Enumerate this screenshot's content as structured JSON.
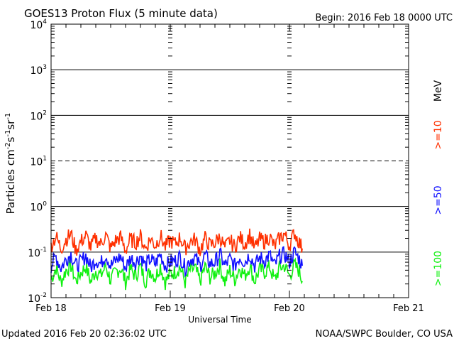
{
  "chart_data": {
    "type": "line",
    "title": "GOES13 Proton Flux (5 minute data)",
    "begin_label": "Begin: 2016 Feb 18 0000 UTC",
    "xlabel": "Universal Time",
    "ylabel_base": "Particles cm",
    "ylabel_parts": [
      "-2",
      "s",
      "-1",
      "sr",
      "-1"
    ],
    "y_scale": "log",
    "ylim": [
      0.01,
      10000
    ],
    "y_ticks": [
      {
        "exp": "4",
        "value": 10000
      },
      {
        "exp": "3",
        "value": 1000
      },
      {
        "exp": "2",
        "value": 100
      },
      {
        "exp": "1",
        "value": 10
      },
      {
        "exp": "0",
        "value": 1
      },
      {
        "exp": "-1",
        "value": 0.1
      },
      {
        "exp": "-2",
        "value": 0.01
      }
    ],
    "x_range_hours": [
      0,
      72
    ],
    "x_ticks": [
      {
        "label": "Feb 18",
        "hour": 0
      },
      {
        "label": "Feb 19",
        "hour": 24
      },
      {
        "label": "Feb 20",
        "hour": 48
      },
      {
        "label": "Feb 21",
        "hour": 72
      }
    ],
    "threshold_line": 10,
    "energy_unit": "MeV",
    "x_hours": [
      0,
      1,
      2,
      3,
      4,
      5,
      6,
      7,
      8,
      9,
      10,
      11,
      12,
      13,
      14,
      15,
      16,
      17,
      18,
      19,
      20,
      21,
      22,
      23,
      24,
      25,
      26,
      27,
      28,
      29,
      30,
      31,
      32,
      33,
      34,
      35,
      36,
      37,
      38,
      39,
      40,
      41,
      42,
      43,
      44,
      45,
      46,
      47,
      48,
      49,
      50,
      50.6
    ],
    "series": [
      {
        "name": ">=10",
        "color": "#ff3000",
        "values": [
          0.14,
          0.22,
          0.12,
          0.19,
          0.25,
          0.11,
          0.17,
          0.23,
          0.13,
          0.2,
          0.15,
          0.24,
          0.12,
          0.18,
          0.21,
          0.11,
          0.19,
          0.16,
          0.22,
          0.12,
          0.2,
          0.14,
          0.23,
          0.13,
          0.18,
          0.15,
          0.21,
          0.12,
          0.17,
          0.19,
          0.11,
          0.2,
          0.14,
          0.16,
          0.22,
          0.12,
          0.18,
          0.13,
          0.21,
          0.15,
          0.24,
          0.12,
          0.19,
          0.17,
          0.22,
          0.13,
          0.2,
          0.25,
          0.14,
          0.27,
          0.16,
          0.12
        ]
      },
      {
        "name": ">=50",
        "color": "#1010ff",
        "values": [
          0.05,
          0.08,
          0.045,
          0.07,
          0.09,
          0.05,
          0.06,
          0.085,
          0.045,
          0.07,
          0.055,
          0.09,
          0.05,
          0.065,
          0.08,
          0.045,
          0.075,
          0.06,
          0.085,
          0.05,
          0.07,
          0.055,
          0.09,
          0.05,
          0.06,
          0.065,
          0.08,
          0.045,
          0.07,
          0.075,
          0.05,
          0.085,
          0.055,
          0.06,
          0.09,
          0.05,
          0.07,
          0.05,
          0.08,
          0.06,
          0.09,
          0.05,
          0.075,
          0.065,
          0.085,
          0.05,
          0.08,
          0.09,
          0.06,
          0.1,
          0.07,
          0.05
        ]
      },
      {
        "name": ">=100",
        "color": "#10f010",
        "values": [
          0.025,
          0.045,
          0.022,
          0.04,
          0.05,
          0.023,
          0.035,
          0.048,
          0.022,
          0.04,
          0.03,
          0.05,
          0.024,
          0.036,
          0.045,
          0.022,
          0.042,
          0.03,
          0.048,
          0.023,
          0.04,
          0.028,
          0.05,
          0.022,
          0.033,
          0.037,
          0.046,
          0.022,
          0.04,
          0.043,
          0.023,
          0.048,
          0.028,
          0.034,
          0.05,
          0.022,
          0.04,
          0.025,
          0.046,
          0.03,
          0.05,
          0.023,
          0.042,
          0.036,
          0.048,
          0.024,
          0.045,
          0.05,
          0.03,
          0.052,
          0.038,
          0.023
        ]
      }
    ]
  },
  "footer": {
    "updated": "Updated 2016 Feb 20 02:36:02 UTC",
    "source": "NOAA/SWPC Boulder, CO USA"
  }
}
